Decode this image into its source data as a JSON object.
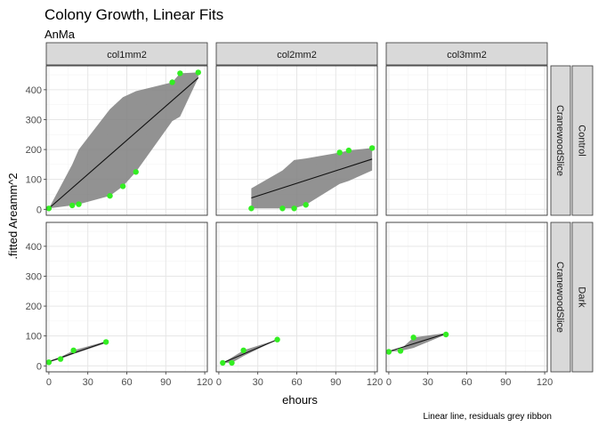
{
  "chart_data": {
    "type": "scatter",
    "title": "Colony Growth, Linear Fits",
    "subtitle": "AnMa",
    "xlabel": "ehours",
    "ylabel": ".fitted Areamm^2",
    "caption": "Linear line, residuals grey ribbon",
    "xlim": [
      -2,
      122
    ],
    "ylim": [
      -20,
      480
    ],
    "x_ticks": [
      0,
      30,
      60,
      90,
      120
    ],
    "y_ticks": [
      0,
      100,
      200,
      300,
      400
    ],
    "grid": true,
    "columns": [
      "col1mm2",
      "col2mm2",
      "col3mm2"
    ],
    "row_labels_inner": [
      "CranewoodSlice",
      "CranewoodSlice"
    ],
    "row_labels_outer": [
      "Control",
      "Dark"
    ],
    "colors": {
      "point": "#33ee22",
      "ribbon": "#7f7f7f",
      "line": "#111111",
      "panel_border": "#333333",
      "strip_fill": "#d9d9d9",
      "grid_major": "#e6e6e6",
      "grid_minor": "#f3f3f3"
    },
    "panels": [
      {
        "row": 0,
        "col": 0,
        "x": [
          0,
          18,
          23,
          47,
          57,
          67,
          95,
          101,
          115
        ],
        "y": [
          3,
          13,
          17,
          45,
          77,
          125,
          425,
          455,
          458
        ],
        "fit_x": [
          0,
          115
        ],
        "fit_y": [
          3,
          440
        ],
        "ribbon_x": [
          0,
          18,
          23,
          47,
          57,
          67,
          95,
          101,
          115
        ],
        "ribbon_lo": [
          3,
          13,
          17,
          45,
          77,
          125,
          295,
          310,
          440
        ],
        "ribbon_hi": [
          3,
          150,
          200,
          335,
          375,
          395,
          425,
          455,
          458
        ]
      },
      {
        "row": 0,
        "col": 1,
        "x": [
          25,
          49,
          58,
          67,
          93,
          100,
          118
        ],
        "y": [
          3,
          3,
          3,
          15,
          190,
          197,
          205
        ],
        "fit_x": [
          25,
          118
        ],
        "fit_y": [
          38,
          168
        ],
        "ribbon_x": [
          25,
          49,
          58,
          67,
          93,
          100,
          118
        ],
        "ribbon_lo": [
          3,
          3,
          3,
          15,
          85,
          95,
          130
        ],
        "ribbon_hi": [
          70,
          130,
          165,
          170,
          190,
          197,
          205
        ]
      },
      {
        "row": 0,
        "col": 2,
        "x": [],
        "y": [],
        "fit_x": [],
        "fit_y": [],
        "ribbon_x": [],
        "ribbon_lo": [],
        "ribbon_hi": []
      },
      {
        "row": 1,
        "col": 0,
        "x": [
          0,
          9,
          19,
          44
        ],
        "y": [
          12,
          23,
          52,
          80
        ],
        "fit_x": [
          0,
          44
        ],
        "fit_y": [
          14,
          80
        ],
        "ribbon_x": [
          0,
          9,
          19,
          44
        ],
        "ribbon_lo": [
          12,
          23,
          40,
          76
        ],
        "ribbon_hi": [
          14,
          29,
          52,
          82
        ]
      },
      {
        "row": 1,
        "col": 1,
        "x": [
          3,
          10,
          19,
          45
        ],
        "y": [
          10,
          10,
          52,
          88
        ],
        "fit_x": [
          3,
          45
        ],
        "fit_y": [
          10,
          88
        ],
        "ribbon_x": [
          3,
          10,
          19,
          45
        ],
        "ribbon_lo": [
          10,
          10,
          33,
          88
        ],
        "ribbon_hi": [
          10,
          28,
          52,
          88
        ]
      },
      {
        "row": 1,
        "col": 2,
        "x": [
          0,
          9,
          19,
          44
        ],
        "y": [
          47,
          50,
          95,
          105
        ],
        "fit_x": [
          0,
          44
        ],
        "fit_y": [
          48,
          108
        ],
        "ribbon_x": [
          0,
          9,
          19,
          44
        ],
        "ribbon_lo": [
          47,
          50,
          60,
          105
        ],
        "ribbon_hi": [
          50,
          55,
          95,
          110
        ]
      }
    ]
  }
}
